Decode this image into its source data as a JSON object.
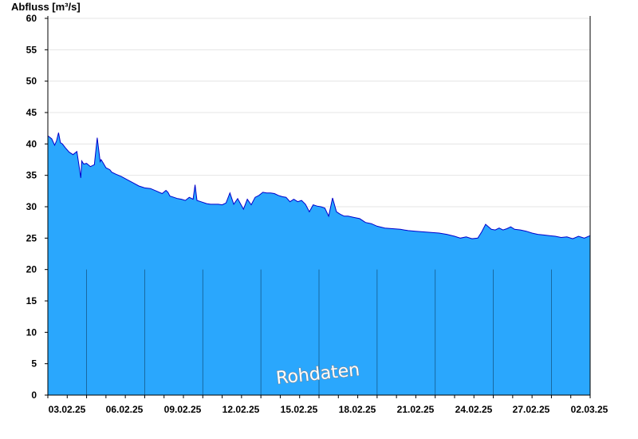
{
  "chart_data": {
    "type": "area",
    "ylabel": "Abfluss [m³/s]",
    "ylim": [
      0,
      60
    ],
    "yticks": [
      "0",
      "5",
      "10",
      "15",
      "20",
      "25",
      "30",
      "35",
      "40",
      "45",
      "50",
      "55",
      "60"
    ],
    "xtick_labels": [
      "03.02.25",
      "06.02.25",
      "09.02.25",
      "12.02.25",
      "15.02.25",
      "18.02.25",
      "21.02.25",
      "24.02.25",
      "27.02.25",
      "02.03.25"
    ],
    "xlim_days": [
      0,
      28
    ],
    "grid": "horizontal",
    "watermark": "Rohdaten",
    "colors": {
      "fill": "#2aa7fd",
      "line": "#0000cc",
      "grid": "#e4e4e4"
    },
    "series": [
      {
        "name": "",
        "x_days": [
          0,
          0.2,
          0.35,
          0.45,
          0.55,
          0.65,
          0.75,
          0.9,
          1.1,
          1.3,
          1.5,
          1.6,
          1.7,
          1.75,
          1.85,
          2.0,
          2.2,
          2.4,
          2.55,
          2.7,
          2.75,
          2.85,
          3.0,
          3.2,
          3.3,
          3.5,
          3.8,
          4.1,
          4.4,
          4.7,
          5.0,
          5.3,
          5.6,
          5.9,
          6.1,
          6.2,
          6.3,
          6.5,
          6.7,
          6.9,
          7.1,
          7.3,
          7.5,
          7.6,
          7.7,
          7.9,
          8.2,
          8.4,
          8.6,
          8.8,
          9.0,
          9.2,
          9.4,
          9.6,
          9.8,
          10.1,
          10.3,
          10.5,
          10.7,
          10.9,
          11.1,
          11.3,
          11.5,
          11.7,
          11.9,
          12.1,
          12.3,
          12.5,
          12.7,
          12.9,
          13.1,
          13.3,
          13.5,
          13.7,
          13.9,
          14.1,
          14.3,
          14.5,
          14.7,
          14.9,
          15.1,
          15.3,
          15.5,
          15.8,
          16.1,
          16.4,
          16.7,
          17.0,
          17.4,
          17.8,
          18.2,
          18.6,
          19.0,
          19.4,
          19.8,
          20.2,
          20.6,
          21.0,
          21.3,
          21.6,
          21.9,
          22.2,
          22.4,
          22.6,
          22.9,
          23.1,
          23.3,
          23.5,
          23.7,
          23.9,
          24.1,
          24.4,
          24.7,
          25.0,
          25.3,
          25.6,
          25.9,
          26.2,
          26.5,
          26.8,
          27.1,
          27.4,
          27.7,
          28.0
        ],
        "values": [
          41.3,
          40.8,
          39.8,
          40.5,
          41.8,
          40.2,
          40.0,
          39.4,
          38.7,
          38.3,
          38.8,
          36.7,
          34.6,
          37.3,
          36.8,
          36.9,
          36.4,
          36.7,
          41.0,
          37.2,
          37.5,
          37.0,
          36.2,
          35.9,
          35.5,
          35.2,
          34.8,
          34.3,
          33.8,
          33.3,
          33.0,
          32.9,
          32.5,
          32.1,
          32.6,
          32.3,
          31.7,
          31.5,
          31.3,
          31.2,
          31.0,
          31.5,
          31.2,
          33.5,
          31.0,
          30.8,
          30.5,
          30.4,
          30.4,
          30.4,
          30.3,
          30.6,
          32.2,
          30.4,
          31.3,
          29.6,
          31.2,
          30.3,
          31.5,
          31.8,
          32.3,
          32.2,
          32.2,
          32.1,
          31.8,
          31.6,
          31.5,
          30.8,
          31.2,
          30.8,
          31.0,
          30.4,
          29.2,
          30.3,
          30.1,
          30.0,
          29.8,
          28.5,
          31.4,
          29.2,
          28.8,
          28.5,
          28.5,
          28.3,
          28.1,
          27.5,
          27.3,
          26.9,
          26.6,
          26.5,
          26.4,
          26.2,
          26.1,
          26.0,
          25.9,
          25.8,
          25.6,
          25.3,
          25.0,
          25.2,
          24.9,
          25.0,
          26.0,
          27.2,
          26.4,
          26.3,
          26.6,
          26.3,
          26.5,
          26.8,
          26.4,
          26.3,
          26.1,
          25.8,
          25.6,
          25.5,
          25.4,
          25.3,
          25.1,
          25.2,
          24.9,
          25.3,
          25.0,
          25.4
        ]
      }
    ]
  }
}
